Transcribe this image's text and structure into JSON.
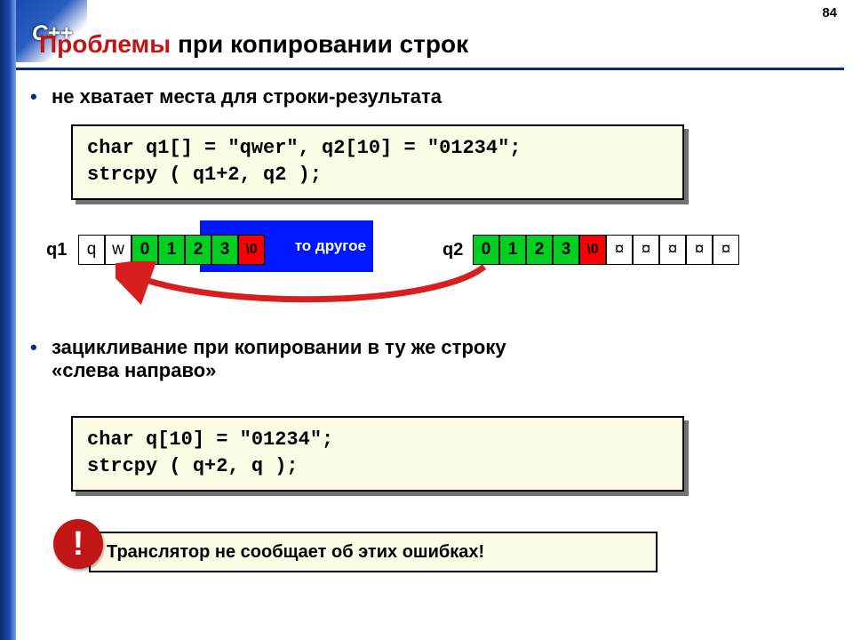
{
  "page_number": "84",
  "logo": "C++",
  "title": {
    "highlight": "Проблемы",
    "rest": " при копировании строк"
  },
  "bullets": {
    "b1": "не хватает места для строки-результата",
    "b2_line1": "зацикливание при копировании в ту же строку",
    "b2_line2": "«слева направо»"
  },
  "code": {
    "box1_line1": "char q1[] = \"qwer\", q2[10] = \"01234\";",
    "box1_line2": "strcpy ( q1+2, q2 );",
    "box2_line1": "char q[10] = \"01234\";",
    "box2_line2": "strcpy ( q+2, q );"
  },
  "memory": {
    "q1_label": "q1",
    "q2_label": "q2",
    "bluebox_text": "то другое",
    "q1_cells": [
      {
        "v": "q",
        "cls": "white"
      },
      {
        "v": "w",
        "cls": "white"
      },
      {
        "v": "0",
        "cls": "green"
      },
      {
        "v": "1",
        "cls": "green"
      },
      {
        "v": "2",
        "cls": "green"
      },
      {
        "v": "3",
        "cls": "green"
      },
      {
        "v": "\\0",
        "cls": "red"
      }
    ],
    "q2_cells": [
      {
        "v": "0",
        "cls": "green"
      },
      {
        "v": "1",
        "cls": "green"
      },
      {
        "v": "2",
        "cls": "green"
      },
      {
        "v": "3",
        "cls": "green"
      },
      {
        "v": "\\0",
        "cls": "red"
      },
      {
        "v": "¤",
        "cls": "white"
      },
      {
        "v": "¤",
        "cls": "white"
      },
      {
        "v": "¤",
        "cls": "white"
      },
      {
        "v": "¤",
        "cls": "white"
      },
      {
        "v": "¤",
        "cls": "white"
      }
    ]
  },
  "warning": {
    "badge": "!",
    "text": "Транслятор не сообщает об этих ошибках!"
  },
  "colors": {
    "accent_red": "#c21515",
    "underline": "#0a2a8a",
    "code_bg": "#fbfbe6",
    "cell_green": "#00d020",
    "cell_red": "#ff0000",
    "bluebox": "#0018ff",
    "arrow": "#d81f1f"
  }
}
